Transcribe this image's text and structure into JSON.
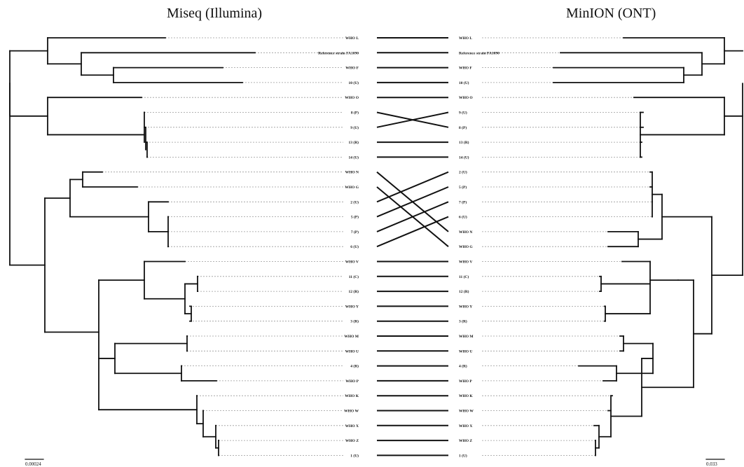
{
  "left_title": "Miseq (Illumina)",
  "right_title": "MinION (ONT)",
  "left_scale_label": "0.00024",
  "right_scale_label": "0.033",
  "line_color": "#111111",
  "leader_color": "#9a9a9a",
  "left_taxa": [
    "WHO L",
    "Reference  strain FA1090",
    "WHO F",
    "10 (U)",
    "WHO O",
    "8 (P)",
    "9 (U)",
    "13 (R)",
    "14 (U)",
    "WHO N",
    "WHO G",
    "2 (U)",
    "5 (P)",
    "7 (P)",
    "6 (U)",
    "WHO V",
    "11 (C)",
    "12 (R)",
    "WHO Y",
    "3 (R)",
    "WHO M",
    "WHO U",
    "4 (R)",
    "WHO P",
    "WHO K",
    "WHO W",
    "WHO X",
    "WHO Z",
    "1 (U)"
  ],
  "right_taxa": [
    "WHO L",
    "Reference  strain FA1090",
    "WHO F",
    "10 (U)",
    "WHO O",
    "9 (U)",
    "8 (P)",
    "13 (R)",
    "14 (U)",
    "2 (U)",
    "5 (P)",
    "7 (P)",
    "6 (U)",
    "WHO N",
    "WHO G",
    "WHO V",
    "11 (C)",
    "12 (R)",
    "WHO Y",
    "3 (R)",
    "WHO M",
    "WHO U",
    "4 (R)",
    "WHO P",
    "WHO K",
    "WHO W",
    "WHO X",
    "WHO Z",
    "1 (U)"
  ]
}
